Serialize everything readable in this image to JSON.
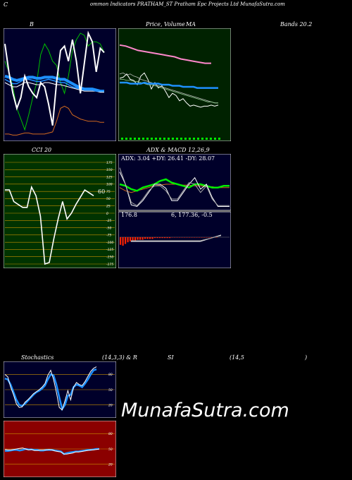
{
  "header": {
    "left_letter": "C",
    "title": "ommon  Indicators PRATHAM_ST Pratham Epc Projects Ltd MunafaSutra.com"
  },
  "labels": {
    "b": "B",
    "price": "Price,",
    "volume": "Volume",
    "ma": "MA",
    "bands": "Bands 20.2",
    "cci": "CCI 20",
    "adx_macd": "ADX  & MACD 12,26,9",
    "adx_values": "ADX: 3.04  +DY: 26.41 -DY: 28.07",
    "macd_values_a": "176.8",
    "macd_values_b": "6,  177.36,  -0.5",
    "stochastics": "Stochastics",
    "stoch_params": "(14,3,3) & R",
    "si": "SI",
    "rsi_params": "(14,5",
    "rsi_close": ")",
    "cci_last": "60",
    "watermark": "MunafaSutra.com"
  },
  "colors": {
    "bg": "#000000",
    "navy": "#00002a",
    "dark_green": "#002200",
    "olive_green": "#003300",
    "dark_red": "#8b0000",
    "white": "#ffffff",
    "blue": "#1e90ff",
    "orange": "#d2691e",
    "green": "#00ee00",
    "pink": "#ff88cc"
  },
  "chart_data": [
    {
      "type": "line",
      "panel": "bollinger",
      "title": "B",
      "series": [
        {
          "values": [
            72,
            62,
            48,
            28,
            18,
            8,
            22,
            38,
            52,
            78,
            88,
            82,
            72,
            68,
            52,
            42,
            58,
            82,
            92,
            98,
            96,
            86,
            90,
            90,
            88,
            80
          ]
        },
        {
          "values": [
            52,
            50,
            48,
            48,
            50,
            52,
            52,
            51,
            50,
            50,
            52,
            52,
            51,
            50,
            50,
            49,
            48,
            47,
            46,
            45,
            44,
            44,
            44,
            44,
            43,
            43
          ]
        },
        {
          "values": [
            58,
            57,
            55,
            54,
            55,
            56,
            57,
            57,
            56,
            56,
            57,
            57,
            57,
            56,
            55,
            55,
            53,
            51,
            49,
            47,
            46,
            46,
            46,
            45,
            44,
            44
          ]
        },
        {
          "values": [
            55,
            53,
            51,
            51,
            53,
            55,
            55,
            54,
            53,
            53,
            54,
            55,
            54,
            53,
            52,
            52,
            50,
            48,
            47,
            46,
            45,
            45,
            45,
            44,
            44,
            44
          ]
        },
        {
          "values": [
            88,
            62,
            42,
            28,
            38,
            58,
            48,
            42,
            38,
            52,
            48,
            32,
            12,
            52,
            82,
            86,
            72,
            92,
            72,
            42,
            70,
            98,
            90,
            62,
            84,
            80
          ]
        },
        {
          "values": [
            4,
            4,
            3,
            3,
            4,
            5,
            5,
            4,
            4,
            4,
            4,
            5,
            6,
            16,
            28,
            30,
            28,
            22,
            20,
            18,
            17,
            16,
            16,
            16,
            15,
            15
          ]
        }
      ]
    },
    {
      "type": "line",
      "panel": "price_ma",
      "title": "Price,   Volume   MA",
      "series": [
        {
          "values": [
            87,
            86,
            84,
            82,
            81,
            80,
            79,
            78,
            77,
            76,
            74,
            73,
            72,
            71,
            70,
            70
          ]
        },
        {
          "values": [
            56,
            57,
            60,
            55,
            54,
            50,
            58,
            61,
            55,
            46,
            52,
            47,
            49,
            44,
            38,
            42,
            40,
            35,
            37,
            33,
            30,
            31,
            30,
            29,
            30,
            30,
            31,
            30,
            31
          ]
        },
        {
          "values": [
            60,
            61,
            59,
            60,
            58,
            57,
            55,
            54,
            53,
            52,
            50,
            49,
            48,
            47,
            46,
            45,
            44,
            43,
            42,
            41,
            40,
            39,
            38,
            37,
            36,
            35,
            34,
            33,
            33
          ]
        },
        {
          "values": [
            55,
            55,
            54,
            54,
            53,
            53,
            52,
            51,
            50,
            50,
            49,
            48,
            47,
            46,
            45,
            44,
            43,
            42,
            41,
            40,
            39,
            38,
            37,
            36,
            35,
            34,
            34,
            33,
            33
          ]
        },
        {
          "values": [
            52,
            52,
            52,
            51,
            51,
            51,
            51,
            52,
            51,
            51,
            51,
            51,
            50,
            50,
            50,
            49,
            49,
            49,
            48,
            48,
            48,
            48,
            47,
            47,
            47,
            47,
            47,
            47,
            47
          ]
        }
      ]
    },
    {
      "type": "line",
      "panel": "cci",
      "title": "CCI 20",
      "ylim": [
        -175,
        175
      ],
      "y_ticks": [
        175,
        150,
        125,
        100,
        75,
        50,
        25,
        0,
        -25,
        -50,
        -75,
        -100,
        -125,
        -150,
        -175
      ],
      "series": [
        {
          "values": [
            80,
            80,
            40,
            30,
            20,
            20,
            90,
            60,
            -10,
            -175,
            -170,
            -90,
            -20,
            40,
            -20,
            0,
            30,
            55,
            80,
            70,
            60
          ]
        }
      ]
    },
    {
      "type": "line",
      "panel": "adx",
      "title": "ADX  & MACD 12,26,9",
      "series": [
        {
          "values": [
            26,
            22,
            20,
            22,
            24,
            26,
            28,
            29,
            30,
            30,
            30,
            29,
            29,
            28,
            28,
            27,
            27,
            26,
            26,
            26
          ]
        },
        {
          "values": [
            30,
            28,
            24,
            22,
            26,
            28,
            30,
            34,
            36,
            32,
            30,
            28,
            26,
            30,
            30,
            28,
            26,
            26,
            28,
            28
          ]
        },
        {
          "values": [
            45,
            30,
            5,
            3,
            10,
            20,
            30,
            30,
            25,
            10,
            10,
            20,
            30,
            38,
            24,
            30,
            14,
            3,
            3,
            3
          ]
        },
        {
          "values": [
            50,
            30,
            8,
            4,
            12,
            22,
            28,
            28,
            22,
            12,
            12,
            22,
            32,
            30,
            20,
            28,
            12,
            4,
            4,
            4
          ]
        }
      ]
    },
    {
      "type": "bar",
      "panel": "macd",
      "series": [
        {
          "values": [
            0.9,
            1.0,
            0.8,
            0.6,
            0.5,
            0.4,
            0.4,
            0.3,
            0.3,
            0.3,
            0.2,
            0.2,
            0.2,
            0.2,
            0.1,
            0.1,
            0.1,
            0.1,
            0.1,
            0.1,
            0.1,
            0.0,
            0.0,
            0.0,
            0.0,
            0.0,
            0.0,
            0.0,
            0.0,
            0.0,
            0.0,
            0.0,
            0.0,
            0.0,
            0.0,
            0.0,
            0.0,
            0.0,
            0.0,
            0.0
          ]
        }
      ]
    },
    {
      "type": "line",
      "panel": "stochastics",
      "title": "Stochastics (14,3,3) & R",
      "y_ticks": [
        80,
        50,
        20
      ],
      "series": [
        {
          "values": [
            72,
            70,
            60,
            45,
            30,
            20,
            18,
            22,
            28,
            34,
            40,
            45,
            48,
            52,
            58,
            70,
            80,
            78,
            60,
            35,
            12,
            20,
            38,
            40,
            55,
            60,
            58,
            55,
            62,
            70,
            80,
            88,
            90
          ]
        },
        {
          "values": [
            80,
            75,
            55,
            40,
            22,
            15,
            16,
            25,
            30,
            36,
            42,
            46,
            50,
            55,
            62,
            78,
            88,
            70,
            45,
            15,
            10,
            28,
            48,
            30,
            55,
            64,
            60,
            58,
            66,
            76,
            86,
            92,
            95
          ]
        }
      ]
    },
    {
      "type": "line",
      "panel": "rsi",
      "title": "SI (14,5 )",
      "y_ticks": [
        80,
        50,
        20
      ],
      "series": [
        {
          "values": [
            46,
            46,
            47,
            48,
            48,
            47,
            48,
            50,
            49,
            49,
            48,
            48,
            47,
            47,
            48,
            48,
            48,
            47,
            46,
            45,
            40,
            42,
            43,
            44,
            45,
            45,
            46,
            47,
            48,
            48,
            49,
            50,
            50
          ]
        },
        {
          "values": [
            49,
            48,
            48,
            49,
            50,
            51,
            52,
            50,
            48,
            49,
            47,
            47,
            48,
            48,
            48,
            49,
            48,
            46,
            45,
            44,
            40,
            40,
            41,
            42,
            44,
            44,
            45,
            46,
            47,
            48,
            48,
            49,
            50
          ]
        }
      ]
    }
  ]
}
